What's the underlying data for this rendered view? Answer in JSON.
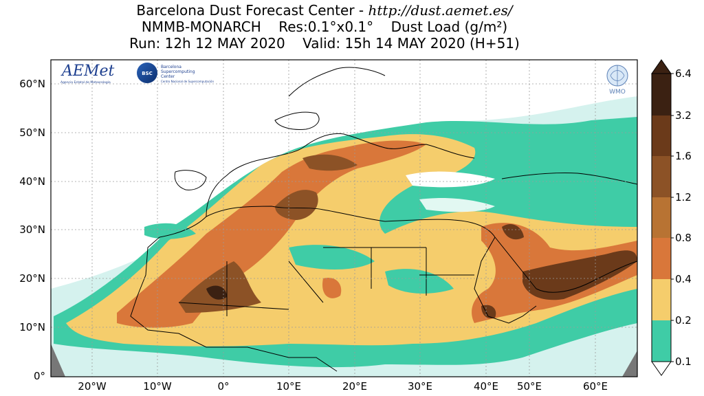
{
  "header": {
    "line1_text": "Barcelona Dust Forecast Center - ",
    "line1_url": "http://dust.aemet.es/",
    "line2": "NMMB-MONARCH    Res:0.1°x0.1°    Dust Load (g/m²)",
    "line3": "Run: 12h 12 MAY 2020    Valid: 15h 14 MAY 2020 (H+51)"
  },
  "axes": {
    "lat_labels": [
      "60°N",
      "50°N",
      "40°N",
      "30°N",
      "20°N",
      "10°N",
      "0°"
    ],
    "lon_labels": [
      "20°W",
      "10°W",
      "0°",
      "10°E",
      "20°E",
      "30°E",
      "40°E",
      "50°E",
      "60°E"
    ]
  },
  "colorbar": {
    "labels": [
      "6.4",
      "3.2",
      "1.6",
      "1.2",
      "0.8",
      "0.4",
      "0.2",
      "0.1"
    ],
    "colors": [
      "#3b2112",
      "#6b3a1a",
      "#8c5226",
      "#b87333",
      "#d9773a",
      "#f5cd6c",
      "#3fcca6",
      "#9be3d4",
      "#e6f7f5"
    ]
  },
  "logos": {
    "aemet": "AEMet",
    "aemet_sub": "Agencia Estatal de Meteorología",
    "bsc": "BSC",
    "bsc_name_1": "Barcelona",
    "bsc_name_2": "Supercomputing",
    "bsc_name_3": "Center",
    "bsc_sub": "Centro Nacional de Supercomputación",
    "wmo": "WMO"
  }
}
